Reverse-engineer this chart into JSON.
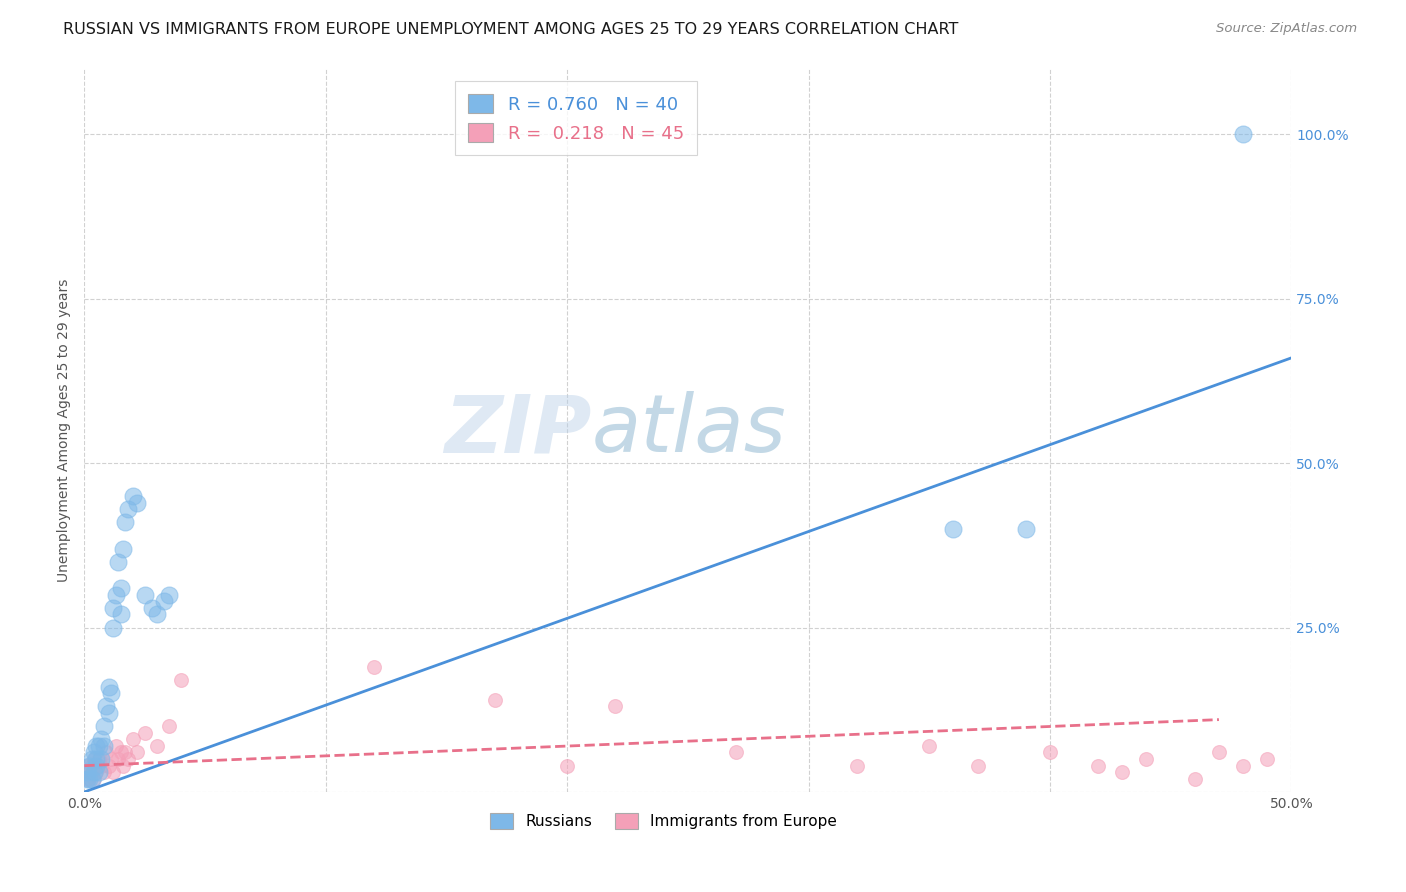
{
  "title": "RUSSIAN VS IMMIGRANTS FROM EUROPE UNEMPLOYMENT AMONG AGES 25 TO 29 YEARS CORRELATION CHART",
  "source": "Source: ZipAtlas.com",
  "ylabel": "Unemployment Among Ages 25 to 29 years",
  "xlim": [
    0.0,
    0.5
  ],
  "ylim": [
    0.0,
    1.1
  ],
  "background_color": "#ffffff",
  "grid_color": "#cccccc",
  "watermark_zip": "ZIP",
  "watermark_atlas": "atlas",
  "blue_scatter_color": "#7eb8e8",
  "pink_scatter_color": "#f4a0b8",
  "blue_line_color": "#4a90d9",
  "pink_line_color": "#e8708a",
  "title_fontsize": 11.5,
  "label_fontsize": 10,
  "tick_fontsize": 10,
  "russians_x": [
    0.001,
    0.001,
    0.002,
    0.002,
    0.003,
    0.003,
    0.004,
    0.004,
    0.005,
    0.005,
    0.005,
    0.006,
    0.006,
    0.007,
    0.007,
    0.008,
    0.008,
    0.009,
    0.01,
    0.01,
    0.011,
    0.012,
    0.012,
    0.013,
    0.014,
    0.015,
    0.015,
    0.016,
    0.017,
    0.018,
    0.02,
    0.022,
    0.025,
    0.028,
    0.03,
    0.033,
    0.035,
    0.36,
    0.39,
    0.48
  ],
  "russians_y": [
    0.02,
    0.03,
    0.02,
    0.04,
    0.02,
    0.05,
    0.03,
    0.06,
    0.04,
    0.07,
    0.05,
    0.03,
    0.07,
    0.05,
    0.08,
    0.07,
    0.1,
    0.13,
    0.12,
    0.16,
    0.15,
    0.28,
    0.25,
    0.3,
    0.35,
    0.27,
    0.31,
    0.37,
    0.41,
    0.43,
    0.45,
    0.44,
    0.3,
    0.28,
    0.27,
    0.29,
    0.3,
    0.4,
    0.4,
    1.0
  ],
  "immigrants_x": [
    0.001,
    0.001,
    0.002,
    0.002,
    0.003,
    0.003,
    0.004,
    0.004,
    0.005,
    0.005,
    0.006,
    0.007,
    0.008,
    0.009,
    0.01,
    0.011,
    0.012,
    0.013,
    0.014,
    0.015,
    0.016,
    0.017,
    0.018,
    0.02,
    0.022,
    0.025,
    0.03,
    0.035,
    0.04,
    0.12,
    0.17,
    0.2,
    0.22,
    0.27,
    0.32,
    0.35,
    0.37,
    0.4,
    0.42,
    0.43,
    0.44,
    0.46,
    0.47,
    0.48,
    0.49
  ],
  "immigrants_y": [
    0.02,
    0.04,
    0.03,
    0.02,
    0.04,
    0.03,
    0.05,
    0.02,
    0.04,
    0.03,
    0.05,
    0.04,
    0.03,
    0.06,
    0.04,
    0.05,
    0.03,
    0.07,
    0.05,
    0.06,
    0.04,
    0.06,
    0.05,
    0.08,
    0.06,
    0.09,
    0.07,
    0.1,
    0.17,
    0.19,
    0.14,
    0.04,
    0.13,
    0.06,
    0.04,
    0.07,
    0.04,
    0.06,
    0.04,
    0.03,
    0.05,
    0.02,
    0.06,
    0.04,
    0.05
  ],
  "blue_line_x": [
    0.0,
    0.5
  ],
  "blue_line_y": [
    0.0,
    0.66
  ],
  "pink_line_x": [
    0.0,
    0.47
  ],
  "pink_line_y": [
    0.04,
    0.11
  ],
  "legend1_text_r": "R = 0.760",
  "legend1_text_n": "N = 40",
  "legend2_text_r": "R =  0.218",
  "legend2_text_n": "N = 45"
}
